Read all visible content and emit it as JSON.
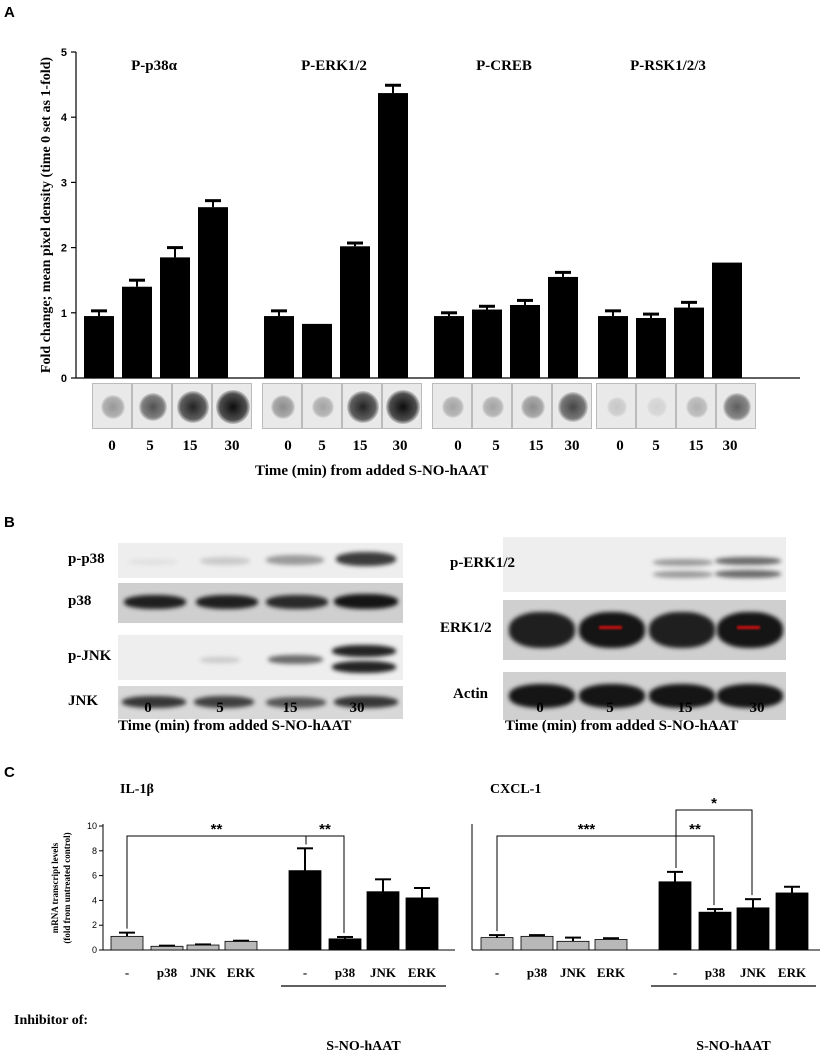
{
  "panel_letters": {
    "a": "A",
    "b": "B",
    "c": "C"
  },
  "panelA": {
    "ylabel": "Fold change; mean pixel density (time 0 set as 1-fold)",
    "xlabel": "Time (min) from added S-NO-hAAT",
    "times": [
      "0",
      "5",
      "15",
      "30"
    ],
    "yticks": [
      "0",
      "1",
      "2",
      "3",
      "4",
      "5"
    ],
    "titles": [
      "P-p38α",
      "P-ERK1/2",
      "P-CREB",
      "P-RSK1/2/3"
    ]
  },
  "panelB": {
    "left_labels": [
      "p-p38",
      "p38",
      "p-JNK",
      "JNK"
    ],
    "right_labels": [
      "p-ERK1/2",
      "ERK1/2",
      "Actin"
    ],
    "times": [
      "0",
      "5",
      "15",
      "30"
    ],
    "xlabel": "Time (min) from added S-NO-hAAT"
  },
  "panelC": {
    "ylabel_line1": "mRNA transcript levels",
    "ylabel_line2": "(fold from untreated control)",
    "yticks": [
      "0",
      "2",
      "4",
      "6",
      "8",
      "10"
    ],
    "inhibitor_label": "Inhibitor of:",
    "categories": [
      "-",
      "p38",
      "JNK",
      "ERK",
      "-",
      "p38",
      "JNK",
      "ERK"
    ],
    "group_label": "S-NO-hAAT",
    "titles": [
      "IL-1β",
      "CXCL-1"
    ]
  },
  "chart_data": [
    {
      "type": "bar",
      "title": "P-p38α",
      "categories": [
        "0",
        "5",
        "15",
        "30"
      ],
      "values": [
        0.95,
        1.4,
        1.85,
        2.62
      ],
      "errors": [
        0.08,
        0.1,
        0.15,
        0.1
      ],
      "ylim": [
        0,
        5
      ]
    },
    {
      "type": "bar",
      "title": "P-ERK1/2",
      "categories": [
        "0",
        "5",
        "15",
        "30"
      ],
      "values": [
        0.95,
        0.83,
        2.02,
        4.37
      ],
      "errors": [
        0.08,
        0.0,
        0.05,
        0.12
      ],
      "ylim": [
        0,
        5
      ]
    },
    {
      "type": "bar",
      "title": "P-CREB",
      "categories": [
        "0",
        "5",
        "15",
        "30"
      ],
      "values": [
        0.95,
        1.05,
        1.12,
        1.55
      ],
      "errors": [
        0.05,
        0.05,
        0.07,
        0.07
      ],
      "ylim": [
        0,
        5
      ]
    },
    {
      "type": "bar",
      "title": "P-RSK1/2/3",
      "categories": [
        "0",
        "5",
        "15",
        "30"
      ],
      "values": [
        0.95,
        0.92,
        1.08,
        1.77
      ],
      "errors": [
        0.08,
        0.06,
        0.08,
        0.0
      ],
      "ylim": [
        0,
        5
      ]
    },
    {
      "type": "bar",
      "title": "IL-1β",
      "categories": [
        "-",
        "p38",
        "JNK",
        "ERK",
        "-",
        "p38",
        "JNK",
        "ERK"
      ],
      "values": [
        1.1,
        0.3,
        0.4,
        0.7,
        6.4,
        0.9,
        4.7,
        4.2
      ],
      "errors": [
        0.3,
        0.05,
        0.05,
        0.05,
        1.8,
        0.15,
        1.0,
        0.8
      ],
      "colors": [
        "#b8b8b8",
        "#b8b8b8",
        "#b8b8b8",
        "#b8b8b8",
        "#000000",
        "#000000",
        "#000000",
        "#000000"
      ],
      "ylim": [
        0,
        10
      ],
      "significance": [
        "**",
        "**"
      ]
    },
    {
      "type": "bar",
      "title": "CXCL-1",
      "categories": [
        "-",
        "p38",
        "JNK",
        "ERK",
        "-",
        "p38",
        "JNK",
        "ERK"
      ],
      "values": [
        1.0,
        1.1,
        0.7,
        0.85,
        5.5,
        3.05,
        3.4,
        4.6
      ],
      "errors": [
        0.2,
        0.1,
        0.3,
        0.1,
        0.8,
        0.25,
        0.7,
        0.5
      ],
      "colors": [
        "#b8b8b8",
        "#b8b8b8",
        "#b8b8b8",
        "#b8b8b8",
        "#000000",
        "#000000",
        "#000000",
        "#000000"
      ],
      "ylim": [
        0,
        10
      ],
      "significance": [
        "***",
        "**",
        "*"
      ]
    }
  ]
}
